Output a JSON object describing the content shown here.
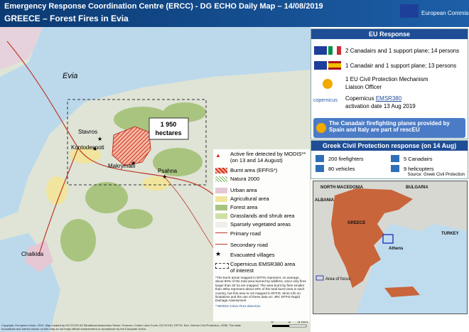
{
  "header": {
    "title": "Emergency Response Coordination  Centre (ERCC) - DG ECHO Daily Map – 14/08/2019",
    "subtitle": "GREECE – Forest Fires in Evia",
    "logo": "European Commission"
  },
  "map": {
    "region": "Evia",
    "burnt_area": "1 950",
    "burnt_unit": "hectares",
    "villages": [
      "Stavros",
      "Kontodespoti",
      "Makrymalli",
      "Psahna"
    ],
    "city": "Chalkida",
    "scale": [
      "0",
      "3",
      "6 Km"
    ]
  },
  "legend": {
    "items": [
      "Active fire detected by MODIS** (on 13 and 14 August)",
      "Burnt area (EFFIS*)",
      "Natura 2000",
      "Urban area",
      "Agricultural area",
      "Forest area",
      "Grasslands and shrub area",
      "Sparsely vegetated areas",
      "Primary road",
      "Secondary road",
      "Evacuated villages",
      "Copernicus EMSR380 area of interest"
    ],
    "note": "*The burnt areas mapped in EFFIS represent, on average, about 80% of the total area burned by wildfires, since only fires larger than 30 ha are mapped. The area burnt by fires smaller than 30ha represent about 20% of the total burnt area in each country, but this area is not mapped in EFFIS. More info on limitations and the use of these data on: JRC EFFIS Rapid Damage Assessment",
    "note2": "**MODIS Active Fires detection"
  },
  "eu_response": {
    "title": "EU Response",
    "items": [
      "2 Canadairs and 1 support plane; 14 persons",
      "1 Canadair and 1 support plane; 13 persons",
      "1 EU Civil Protection Mechanism",
      "Liaison Officer"
    ],
    "copernicus": "Copernicus",
    "copernicus_code": "EMSR380",
    "copernicus_date": "activation date 13 Aug 2019",
    "copernicus_logo": "copernicus",
    "note": "The Canadair firefighting planes provided by Spain and Italy are part of rescEU"
  },
  "civil_protection": {
    "title": "Greek Civil Protection response (on 14 Aug)",
    "items": [
      "200 firefighters",
      "5 Canadairs",
      "80 vehicles",
      "9 helicopters"
    ],
    "source": "Source: Greek Civil Protection"
  },
  "inset": {
    "labels": [
      "BULGARIA",
      "NORTH MACEDONIA",
      "ALBANIA",
      "GREECE",
      "TURKEY",
      "Athens"
    ],
    "legend": "Area of focus"
  },
  "footer": "Copyright, European Union, 2019. Map created by DG ECHO A3 Situational Awareness Sector. Sources: Corine Land Cover, DG ECHO, EFFIS, Esri, Greece Civil Protection, OSM. The state boundaries and names shown on this map do not imply official endorsement or acceptance by the European Union."
}
